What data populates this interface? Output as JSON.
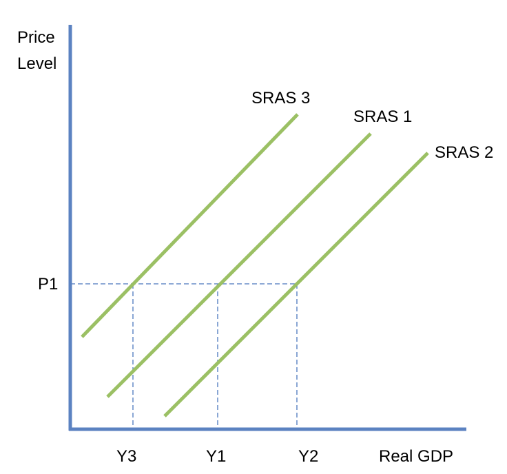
{
  "axes": {
    "y_label_line1": "Price",
    "y_label_line2": "Level",
    "x_label": "Real GDP"
  },
  "price_levels": {
    "p1": "P1"
  },
  "output_levels": {
    "y3": "Y3",
    "y1": "Y1",
    "y2": "Y2"
  },
  "curves": [
    {
      "label": "SRAS 3"
    },
    {
      "label": "SRAS 1"
    },
    {
      "label": "SRAS 2"
    }
  ],
  "colors": {
    "axis": "#5b82c1",
    "guide_lines": "#4a76bd",
    "curves": "#9bc064",
    "text": "#000000"
  }
}
